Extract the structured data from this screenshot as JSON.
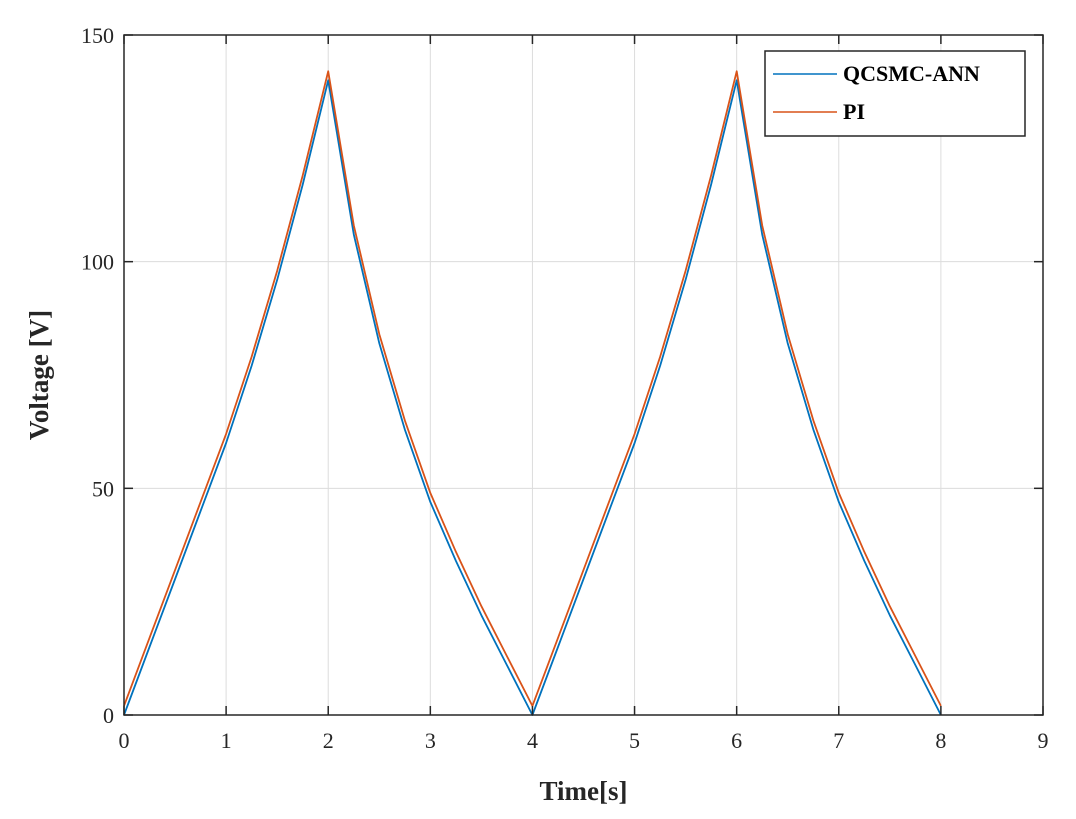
{
  "chart_data": {
    "type": "line",
    "xlabel": "Time[s]",
    "ylabel": "Voltage [V]",
    "xlim": [
      0,
      9
    ],
    "ylim": [
      0,
      150
    ],
    "xticks": [
      0,
      1,
      2,
      3,
      4,
      5,
      6,
      7,
      8,
      9
    ],
    "yticks": [
      0,
      50,
      100,
      150
    ],
    "x_tick_labels": [
      "0",
      "1",
      "2",
      "3",
      "4",
      "5",
      "6",
      "7",
      "8",
      "9"
    ],
    "y_tick_labels": [
      "0",
      "50",
      "100",
      "150"
    ],
    "grid": true,
    "legend_position": "top-right",
    "series": [
      {
        "name": "QCSMC-ANN",
        "color": "#0072BD",
        "x": [
          0,
          0.25,
          0.5,
          0.75,
          1.0,
          1.25,
          1.5,
          1.75,
          2.0,
          2.25,
          2.5,
          2.75,
          3.0,
          3.25,
          3.5,
          3.75,
          4.0,
          4.25,
          4.5,
          4.75,
          5.0,
          5.25,
          5.5,
          5.75,
          6.0,
          6.25,
          6.5,
          6.75,
          7.0,
          7.25,
          7.5,
          7.75,
          8.0
        ],
        "y": [
          0,
          15,
          30,
          45,
          60,
          77,
          96,
          117,
          140,
          106,
          82,
          63,
          47,
          34,
          22,
          11,
          0,
          15,
          30,
          45,
          60,
          77,
          96,
          117,
          140,
          106,
          82,
          63,
          47,
          34,
          22,
          11,
          0
        ]
      },
      {
        "name": "PI",
        "color": "#D95319",
        "x": [
          0,
          0.25,
          0.5,
          0.75,
          1.0,
          1.25,
          1.5,
          1.75,
          2.0,
          2.25,
          2.5,
          2.75,
          3.0,
          3.25,
          3.5,
          3.75,
          4.0,
          4.25,
          4.5,
          4.75,
          5.0,
          5.25,
          5.5,
          5.75,
          6.0,
          6.25,
          6.5,
          6.75,
          7.0,
          7.25,
          7.5,
          7.75,
          8.0
        ],
        "y": [
          2,
          17,
          32,
          47,
          62,
          79,
          98,
          119,
          142,
          108,
          84,
          65,
          49,
          36,
          24,
          13,
          2,
          17,
          32,
          47,
          62,
          79,
          98,
          119,
          142,
          108,
          84,
          65,
          49,
          36,
          24,
          13,
          2
        ]
      }
    ]
  }
}
